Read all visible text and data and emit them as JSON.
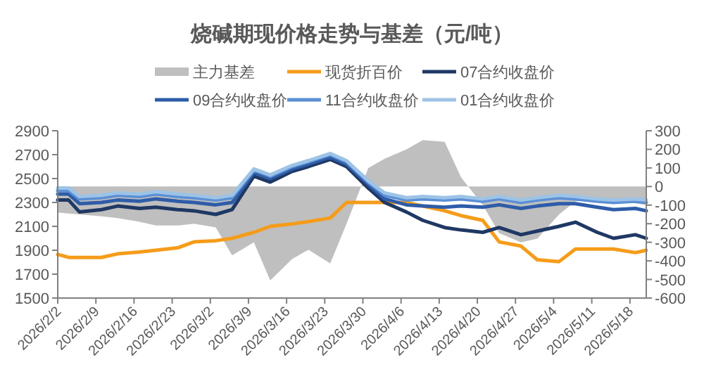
{
  "chart_data": {
    "type": "line",
    "title": "烧碱期现价格走势与基差（元/吨）",
    "legend": "top",
    "grid": false,
    "marker": "none",
    "line_style": "solid",
    "x": [
      "2026-02-02",
      "2026-02-04",
      "2026-02-06",
      "2026-02-10",
      "2026-02-13",
      "2026-02-17",
      "2026-02-20",
      "2026-02-24",
      "2026-02-27",
      "2026-03-03",
      "2026-03-06",
      "2026-03-10",
      "2026-03-13",
      "2026-03-17",
      "2026-03-20",
      "2026-03-24",
      "2026-03-27",
      "2026-03-31",
      "2026-04-03",
      "2026-04-07",
      "2026-04-10",
      "2026-04-14",
      "2026-04-17",
      "2026-04-21",
      "2026-04-24",
      "2026-04-28",
      "2026-05-01",
      "2026-05-05",
      "2026-05-08",
      "2026-05-12",
      "2026-05-15",
      "2026-05-19",
      "2026-05-21"
    ],
    "series": [
      {
        "name": "主力基差",
        "type": "area",
        "axis": "y2",
        "color": "#bfbfbf",
        "values": [
          -140,
          -145,
          -150,
          -160,
          -170,
          -190,
          -210,
          -210,
          -200,
          -220,
          -370,
          -300,
          -505,
          -390,
          -340,
          -414,
          -200,
          100,
          150,
          200,
          250,
          240,
          50,
          -100,
          -250,
          -300,
          -280,
          -150,
          -80,
          -60,
          -80,
          -90,
          -100
        ]
      },
      {
        "name": "现货折百价",
        "color": "#f59c1a",
        "values": [
          1865,
          1840,
          1840,
          1840,
          1870,
          1885,
          1900,
          1920,
          1970,
          1980,
          2000,
          2050,
          2100,
          2120,
          2140,
          2170,
          2300,
          2300,
          2300,
          2300,
          2270,
          2230,
          2190,
          2150,
          1970,
          1935,
          1820,
          1805,
          1910,
          1910,
          1910,
          1880,
          1900
        ]
      },
      {
        "name": "07合约收盘价",
        "color": "#1f3864",
        "values": [
          2320,
          2320,
          2220,
          2240,
          2270,
          2250,
          2260,
          2240,
          2230,
          2200,
          2240,
          2520,
          2470,
          2560,
          2600,
          2660,
          2600,
          2420,
          2300,
          2220,
          2150,
          2090,
          2070,
          2050,
          2090,
          2030,
          2060,
          2100,
          2135,
          2050,
          2000,
          2030,
          2000
        ]
      },
      {
        "name": "09合约收盘价",
        "color": "#2e5ca8",
        "values": [
          2370,
          2370,
          2290,
          2300,
          2320,
          2310,
          2330,
          2310,
          2300,
          2280,
          2300,
          2550,
          2500,
          2580,
          2620,
          2680,
          2620,
          2450,
          2330,
          2280,
          2270,
          2260,
          2270,
          2260,
          2280,
          2250,
          2270,
          2290,
          2290,
          2260,
          2240,
          2250,
          2230
        ]
      },
      {
        "name": "11合约收盘价",
        "color": "#5b8fd6",
        "values": [
          2400,
          2400,
          2330,
          2340,
          2360,
          2350,
          2370,
          2350,
          2340,
          2320,
          2340,
          2570,
          2520,
          2600,
          2640,
          2700,
          2640,
          2470,
          2360,
          2320,
          2330,
          2320,
          2330,
          2310,
          2330,
          2300,
          2320,
          2340,
          2330,
          2310,
          2300,
          2310,
          2300
        ]
      },
      {
        "name": "01合约收盘价",
        "color": "#9dc3e6",
        "values": [
          2420,
          2420,
          2350,
          2360,
          2380,
          2370,
          2390,
          2370,
          2360,
          2340,
          2360,
          2580,
          2530,
          2610,
          2650,
          2710,
          2650,
          2480,
          2380,
          2340,
          2350,
          2340,
          2350,
          2330,
          2350,
          2320,
          2340,
          2360,
          2350,
          2330,
          2320,
          2330,
          2320
        ]
      }
    ],
    "xlim": [
      "2026-02-02",
      "2026-05-21"
    ],
    "xticks": [
      {
        "value": "2026-02-02",
        "label": "2026/2/2"
      },
      {
        "value": "2026-02-09",
        "label": "2026/2/9"
      },
      {
        "value": "2026-02-16",
        "label": "2026/2/16"
      },
      {
        "value": "2026-02-23",
        "label": "2026/2/23"
      },
      {
        "value": "2026-03-02",
        "label": "2026/3/2"
      },
      {
        "value": "2026-03-09",
        "label": "2026/3/9"
      },
      {
        "value": "2026-03-16",
        "label": "2026/3/16"
      },
      {
        "value": "2026-03-23",
        "label": "2026/3/23"
      },
      {
        "value": "2026-03-30",
        "label": "2026/3/30"
      },
      {
        "value": "2026-04-06",
        "label": "2026/4/6"
      },
      {
        "value": "2026-04-13",
        "label": "2026/4/13"
      },
      {
        "value": "2026-04-20",
        "label": "2026/4/20"
      },
      {
        "value": "2026-04-27",
        "label": "2026/4/27"
      },
      {
        "value": "2026-05-04",
        "label": "2026/5/4"
      },
      {
        "value": "2026-05-11",
        "label": "2026/5/11"
      },
      {
        "value": "2026-05-18",
        "label": "2026/5/18"
      }
    ],
    "ylim": [
      1500,
      2900
    ],
    "yticks": [
      1500,
      1700,
      1900,
      2100,
      2300,
      2500,
      2700,
      2900
    ],
    "y2lim": [
      -600,
      300
    ],
    "y2ticks": [
      -600,
      -500,
      -400,
      -300,
      -200,
      -100,
      0,
      100,
      200,
      300
    ]
  }
}
